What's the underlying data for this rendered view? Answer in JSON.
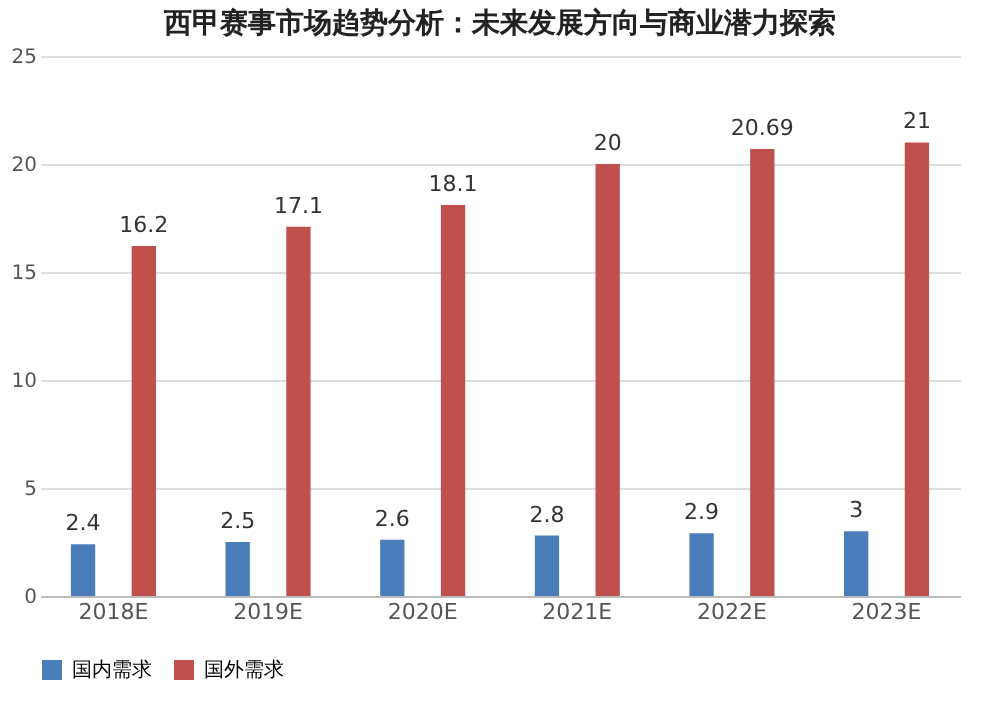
{
  "chart_data": {
    "type": "bar",
    "title": "西甲赛事市场趋势分析：未来发展方向与商业潜力探索",
    "categories": [
      "2018E",
      "2019E",
      "2020E",
      "2021E",
      "2022E",
      "2023E"
    ],
    "series": [
      {
        "name": "国内需求",
        "color": "#4a7ebb",
        "values": [
          2.4,
          2.5,
          2.6,
          2.8,
          2.9,
          3
        ]
      },
      {
        "name": "国外需求",
        "color": "#c0504d",
        "values": [
          16.2,
          17.1,
          18.1,
          20,
          20.69,
          21
        ]
      }
    ],
    "ylim": [
      0,
      25
    ],
    "yticks": [
      0,
      5,
      10,
      15,
      20,
      25
    ],
    "grid": "y",
    "legend": "bottom",
    "data_labels": true
  }
}
